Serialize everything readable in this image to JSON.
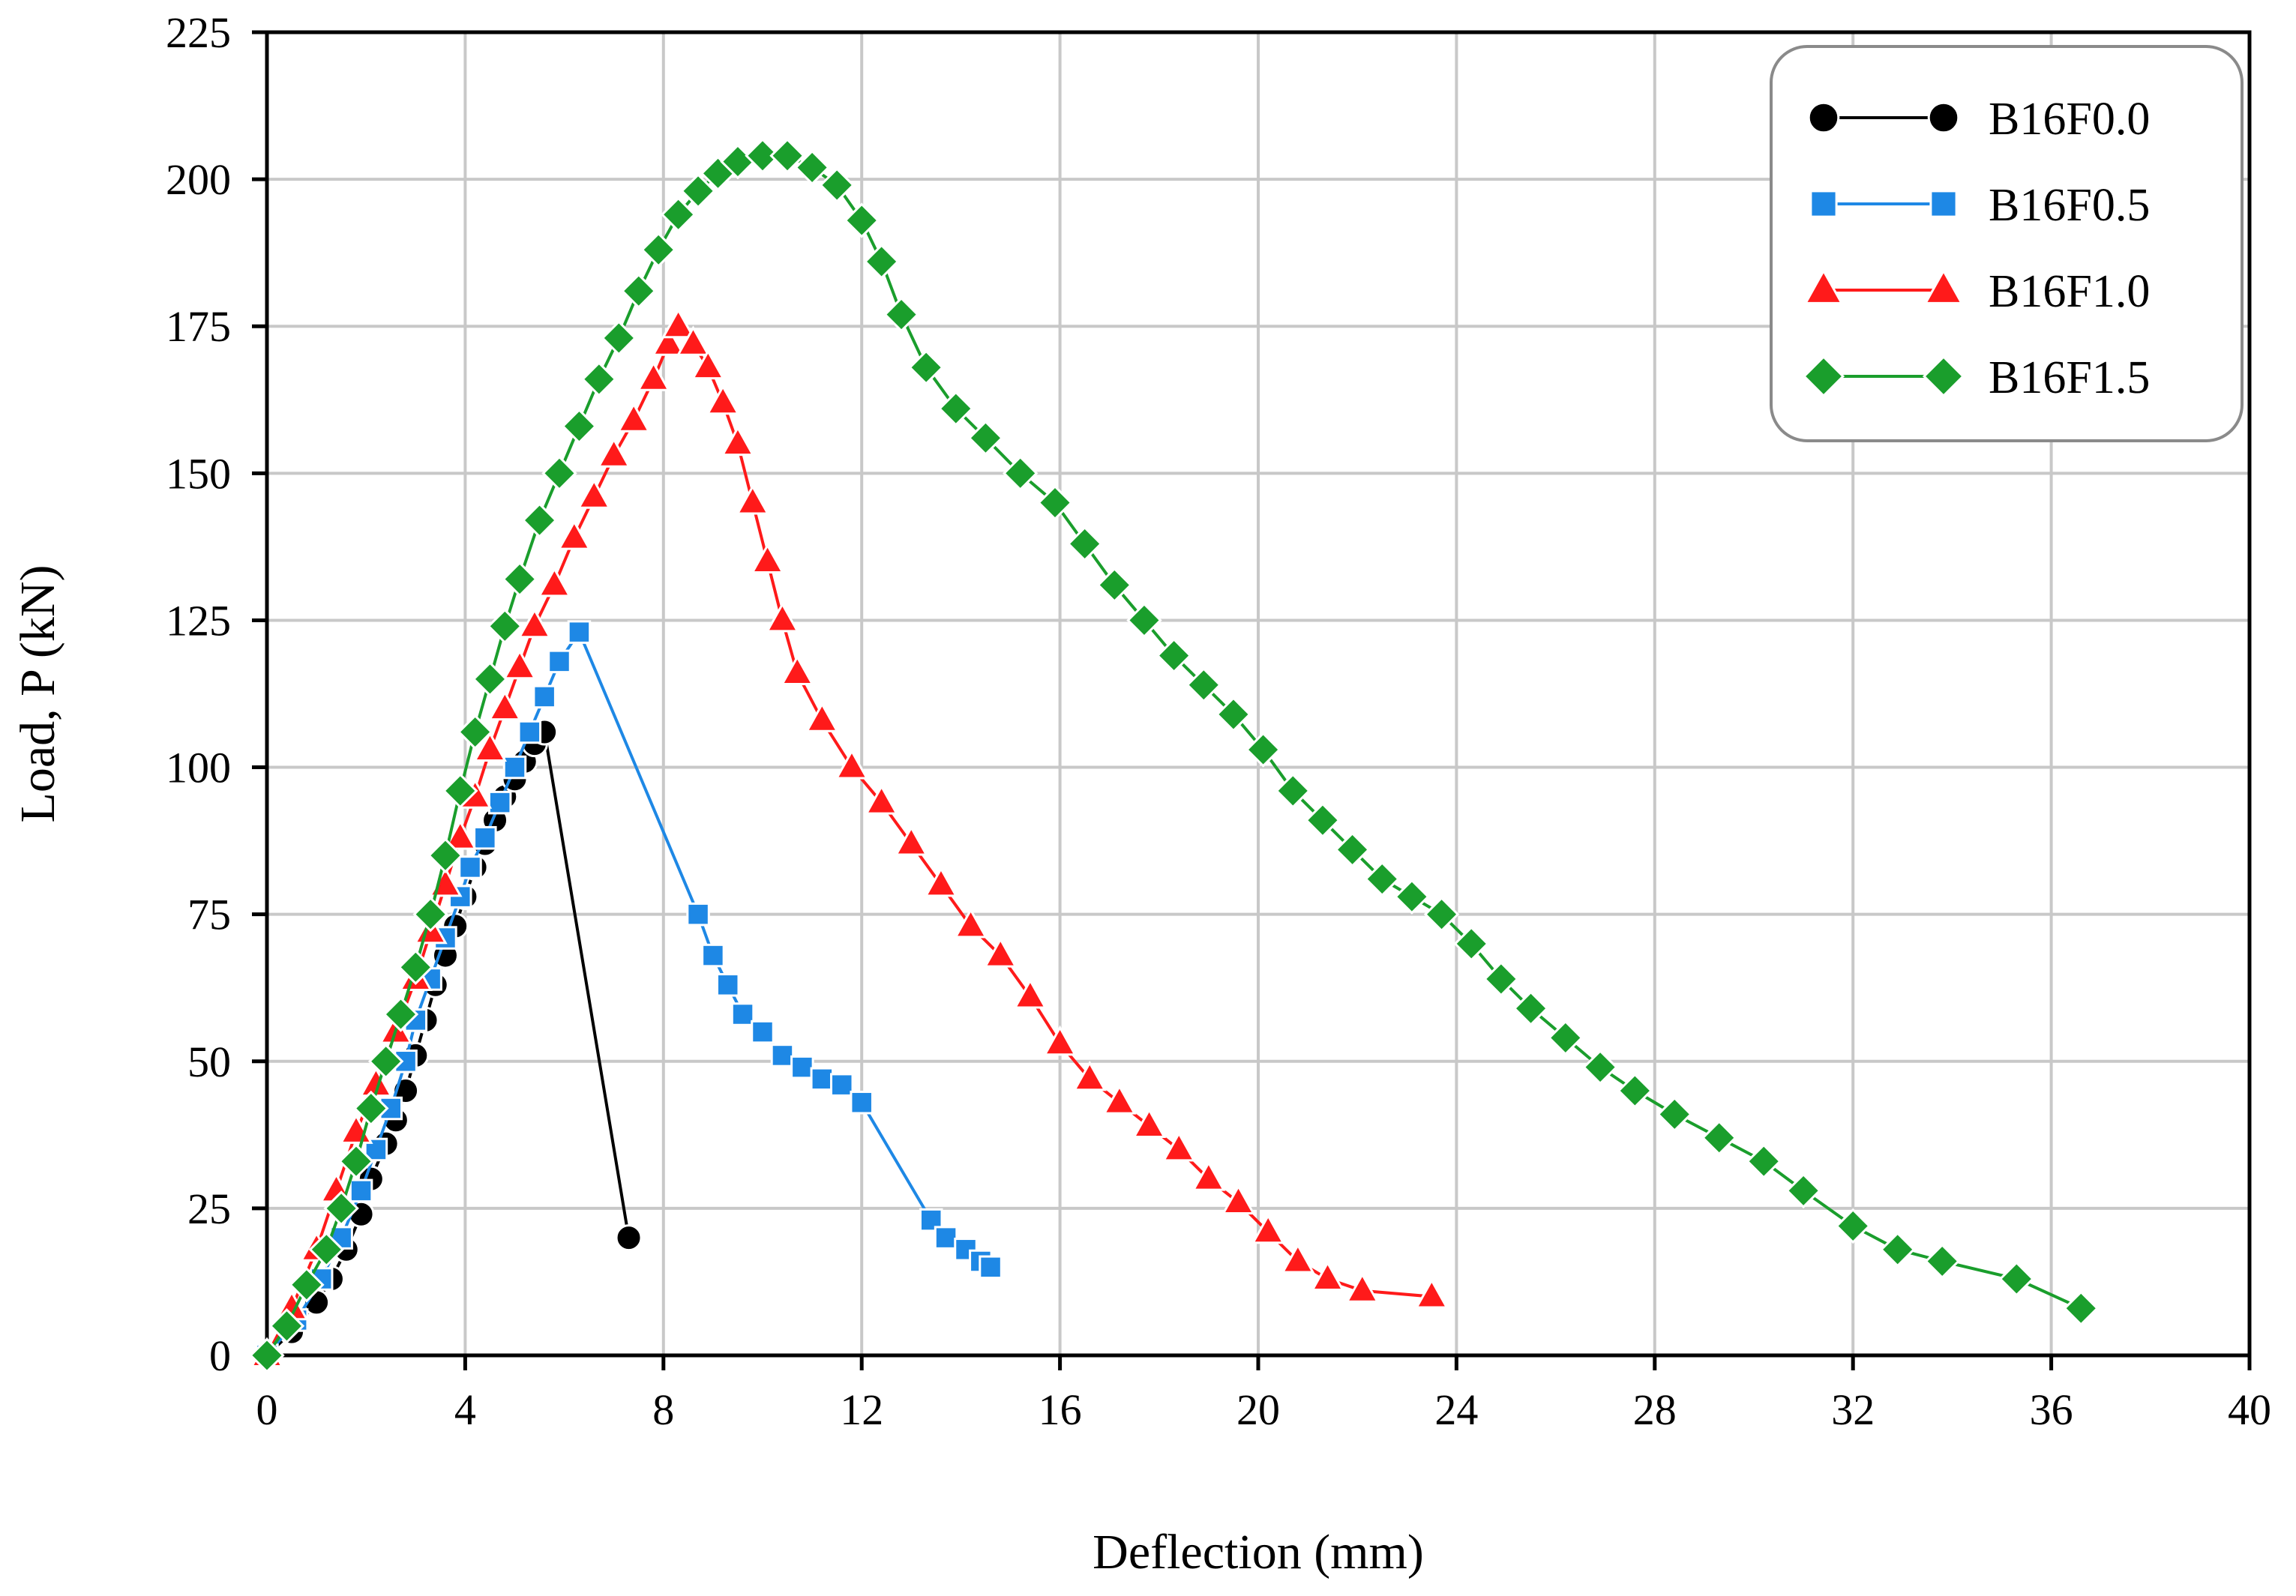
{
  "chart_data": {
    "type": "line",
    "title": "",
    "xlabel": "Deflection (mm)",
    "ylabel": "Load, P (kN)",
    "xlim": [
      0,
      40
    ],
    "ylim": [
      0,
      225
    ],
    "xticks": [
      0,
      4,
      8,
      12,
      16,
      20,
      24,
      28,
      32,
      36,
      40
    ],
    "yticks": [
      0,
      25,
      50,
      75,
      100,
      125,
      150,
      175,
      200,
      225
    ],
    "grid": true,
    "legend_position": "top-right",
    "series": [
      {
        "name": "B16F0.0",
        "color": "#000000",
        "marker": "circle",
        "points": [
          [
            0,
            0
          ],
          [
            0.5,
            4
          ],
          [
            1.0,
            9
          ],
          [
            1.3,
            13
          ],
          [
            1.6,
            18
          ],
          [
            1.9,
            24
          ],
          [
            2.1,
            30
          ],
          [
            2.4,
            36
          ],
          [
            2.6,
            40
          ],
          [
            2.8,
            45
          ],
          [
            3.0,
            51
          ],
          [
            3.2,
            57
          ],
          [
            3.4,
            63
          ],
          [
            3.6,
            68
          ],
          [
            3.8,
            73
          ],
          [
            4.0,
            78
          ],
          [
            4.2,
            83
          ],
          [
            4.4,
            87
          ],
          [
            4.6,
            91
          ],
          [
            4.8,
            95
          ],
          [
            5.0,
            98
          ],
          [
            5.2,
            101
          ],
          [
            5.4,
            104
          ],
          [
            5.6,
            106
          ],
          [
            7.3,
            20
          ]
        ]
      },
      {
        "name": "B16F0.5",
        "color": "#1E88E5",
        "marker": "square",
        "points": [
          [
            0,
            0
          ],
          [
            0.6,
            6
          ],
          [
            1.1,
            13
          ],
          [
            1.5,
            20
          ],
          [
            1.9,
            28
          ],
          [
            2.2,
            35
          ],
          [
            2.5,
            42
          ],
          [
            2.8,
            50
          ],
          [
            3.0,
            57
          ],
          [
            3.3,
            64
          ],
          [
            3.6,
            71
          ],
          [
            3.9,
            78
          ],
          [
            4.1,
            83
          ],
          [
            4.4,
            88
          ],
          [
            4.7,
            94
          ],
          [
            5.0,
            100
          ],
          [
            5.3,
            106
          ],
          [
            5.6,
            112
          ],
          [
            5.9,
            118
          ],
          [
            6.3,
            123
          ],
          [
            8.7,
            75
          ],
          [
            9.0,
            68
          ],
          [
            9.3,
            63
          ],
          [
            9.6,
            58
          ],
          [
            10.0,
            55
          ],
          [
            10.4,
            51
          ],
          [
            10.8,
            49
          ],
          [
            11.2,
            47
          ],
          [
            11.6,
            46
          ],
          [
            12.0,
            43
          ],
          [
            13.4,
            23
          ],
          [
            13.7,
            20
          ],
          [
            14.1,
            18
          ],
          [
            14.4,
            16
          ],
          [
            14.6,
            15
          ]
        ]
      },
      {
        "name": "B16F1.0",
        "color": "#FF1A1A",
        "marker": "triangle",
        "points": [
          [
            0,
            0
          ],
          [
            0.5,
            8
          ],
          [
            1.0,
            18
          ],
          [
            1.4,
            28
          ],
          [
            1.8,
            38
          ],
          [
            2.2,
            46
          ],
          [
            2.6,
            55
          ],
          [
            3.0,
            64
          ],
          [
            3.3,
            72
          ],
          [
            3.6,
            80
          ],
          [
            3.9,
            88
          ],
          [
            4.2,
            95
          ],
          [
            4.5,
            103
          ],
          [
            4.8,
            110
          ],
          [
            5.1,
            117
          ],
          [
            5.4,
            124
          ],
          [
            5.8,
            131
          ],
          [
            6.2,
            139
          ],
          [
            6.6,
            146
          ],
          [
            7.0,
            153
          ],
          [
            7.4,
            159
          ],
          [
            7.8,
            166
          ],
          [
            8.1,
            172
          ],
          [
            8.3,
            175
          ],
          [
            8.6,
            172
          ],
          [
            8.9,
            168
          ],
          [
            9.2,
            162
          ],
          [
            9.5,
            155
          ],
          [
            9.8,
            145
          ],
          [
            10.1,
            135
          ],
          [
            10.4,
            125
          ],
          [
            10.7,
            116
          ],
          [
            11.2,
            108
          ],
          [
            11.8,
            100
          ],
          [
            12.4,
            94
          ],
          [
            13.0,
            87
          ],
          [
            13.6,
            80
          ],
          [
            14.2,
            73
          ],
          [
            14.8,
            68
          ],
          [
            15.4,
            61
          ],
          [
            16.0,
            53
          ],
          [
            16.6,
            47
          ],
          [
            17.2,
            43
          ],
          [
            17.8,
            39
          ],
          [
            18.4,
            35
          ],
          [
            19.0,
            30
          ],
          [
            19.6,
            26
          ],
          [
            20.2,
            21
          ],
          [
            20.8,
            16
          ],
          [
            21.4,
            13
          ],
          [
            22.1,
            11
          ],
          [
            23.5,
            10
          ]
        ]
      },
      {
        "name": "B16F1.5",
        "color": "#1A9E2C",
        "marker": "diamond",
        "points": [
          [
            0,
            0
          ],
          [
            0.4,
            5
          ],
          [
            0.8,
            12
          ],
          [
            1.2,
            18
          ],
          [
            1.5,
            25
          ],
          [
            1.8,
            33
          ],
          [
            2.1,
            42
          ],
          [
            2.4,
            50
          ],
          [
            2.7,
            58
          ],
          [
            3.0,
            66
          ],
          [
            3.3,
            75
          ],
          [
            3.6,
            85
          ],
          [
            3.9,
            96
          ],
          [
            4.2,
            106
          ],
          [
            4.5,
            115
          ],
          [
            4.8,
            124
          ],
          [
            5.1,
            132
          ],
          [
            5.5,
            142
          ],
          [
            5.9,
            150
          ],
          [
            6.3,
            158
          ],
          [
            6.7,
            166
          ],
          [
            7.1,
            173
          ],
          [
            7.5,
            181
          ],
          [
            7.9,
            188
          ],
          [
            8.3,
            194
          ],
          [
            8.7,
            198
          ],
          [
            9.1,
            201
          ],
          [
            9.5,
            203
          ],
          [
            10.0,
            204
          ],
          [
            10.5,
            204
          ],
          [
            11.0,
            202
          ],
          [
            11.5,
            199
          ],
          [
            12.0,
            193
          ],
          [
            12.4,
            186
          ],
          [
            12.8,
            177
          ],
          [
            13.3,
            168
          ],
          [
            13.9,
            161
          ],
          [
            14.5,
            156
          ],
          [
            15.2,
            150
          ],
          [
            15.9,
            145
          ],
          [
            16.5,
            138
          ],
          [
            17.1,
            131
          ],
          [
            17.7,
            125
          ],
          [
            18.3,
            119
          ],
          [
            18.9,
            114
          ],
          [
            19.5,
            109
          ],
          [
            20.1,
            103
          ],
          [
            20.7,
            96
          ],
          [
            21.3,
            91
          ],
          [
            21.9,
            86
          ],
          [
            22.5,
            81
          ],
          [
            23.1,
            78
          ],
          [
            23.7,
            75
          ],
          [
            24.3,
            70
          ],
          [
            24.9,
            64
          ],
          [
            25.5,
            59
          ],
          [
            26.2,
            54
          ],
          [
            26.9,
            49
          ],
          [
            27.6,
            45
          ],
          [
            28.4,
            41
          ],
          [
            29.3,
            37
          ],
          [
            30.2,
            33
          ],
          [
            31.0,
            28
          ],
          [
            32.0,
            22
          ],
          [
            32.9,
            18
          ],
          [
            33.8,
            16
          ],
          [
            35.3,
            13
          ],
          [
            36.6,
            8
          ]
        ]
      }
    ]
  }
}
